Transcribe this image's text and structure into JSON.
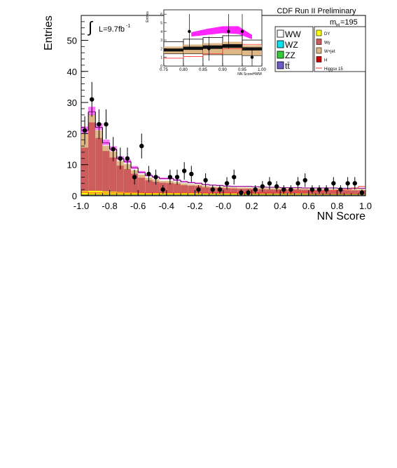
{
  "chart_data": {
    "type": "bar",
    "title": "CDF Run II Preliminary",
    "xlabel": "NN Score",
    "ylabel": "Entries",
    "luminosity": "L=9.7fb",
    "luminosity_exp": "-1",
    "mass_label": "m",
    "mass_sub": "H",
    "mass_value": "=195",
    "xlim": [
      -1.0,
      1.0
    ],
    "ylim": [
      0,
      58
    ],
    "x_ticks": [
      "-1.0",
      "-0.8",
      "-0.6",
      "-0.4",
      "-0.2",
      "-0.0",
      "0.2",
      "0.4",
      "0.6",
      "0.8",
      "1.0"
    ],
    "y_ticks": [
      "0",
      "10",
      "20",
      "30",
      "40",
      "50"
    ],
    "bin_width": 0.05,
    "bin_edges_start": -1.0,
    "stack_order": [
      "H",
      "DY",
      "WZ",
      "ZZ",
      "tt",
      "Wjet",
      "Wg",
      "WW"
    ],
    "colors": {
      "WW": "#ffffff",
      "WZ": "#00e5ee",
      "ZZ": "#33cc33",
      "tt": "#6a5acd",
      "DY": "#ffff00",
      "Wg": "#cd5c5c",
      "Wjet": "#deb887",
      "H": "#cc0000",
      "signal_line": "#ff3333",
      "uncertainty": "#ff00ff"
    },
    "background_total": [
      21,
      27,
      22,
      17,
      15,
      12,
      11,
      9,
      7.5,
      6.5,
      6,
      5.5,
      5.5,
      5,
      4.5,
      4.2,
      4,
      3.6,
      3.4,
      3.3,
      3.1,
      3,
      3,
      3,
      2.9,
      2.8,
      2.7,
      2.7,
      2.6,
      2.6,
      2.6,
      2.5,
      2.5,
      2.5,
      2.5,
      2.5,
      2.4,
      2.4,
      2.4,
      2.4
    ],
    "components": {
      "DY": [
        1.5,
        1.6,
        1.6,
        1.4,
        1.3,
        1.2,
        1.1,
        1.1,
        1.0,
        1.0,
        0.9,
        0.9,
        0.9,
        0.9,
        0.8,
        0.8,
        0.8,
        0.7,
        0.7,
        0.7,
        0.7,
        0.7,
        0.6,
        0.6,
        0.6,
        0.6,
        0.6,
        0.6,
        0.6,
        0.6,
        0.6,
        0.6,
        0.5,
        0.5,
        0.5,
        0.5,
        0.5,
        0.5,
        0.5,
        0.5
      ],
      "Wg": [
        14,
        22,
        17,
        13,
        11,
        8.5,
        7.5,
        6,
        4.8,
        4,
        3.6,
        3.3,
        3.2,
        2.9,
        2.6,
        2.4,
        2.3,
        2,
        1.9,
        1.8,
        1.7,
        1.6,
        1.6,
        1.6,
        1.5,
        1.5,
        1.4,
        1.4,
        1.4,
        1.4,
        1.4,
        1.3,
        1.3,
        1.3,
        1.3,
        1.3,
        1.2,
        1.2,
        1.2,
        1.2
      ],
      "Wjet": [
        4.5,
        2.5,
        2.4,
        1.7,
        1.9,
        1.5,
        1.6,
        1.1,
        1.0,
        0.8,
        0.8,
        0.6,
        0.7,
        0.6,
        0.6,
        0.5,
        0.5,
        0.5,
        0.4,
        0.4,
        0.4,
        0.4,
        0.4,
        0.4,
        0.4,
        0.4,
        0.4,
        0.4,
        0.4,
        0.4,
        0.4,
        0.4,
        0.4,
        0.4,
        0.4,
        0.4,
        0.4,
        0.4,
        0.4,
        0.4
      ],
      "signal_x15": [
        1.1,
        0.9,
        0.9,
        0.9,
        0.9,
        0.9,
        0.9,
        0.9,
        0.9,
        0.9,
        0.9,
        0.9,
        0.9,
        0.9,
        0.9,
        0.9,
        0.9,
        0.9,
        1.0,
        1.0,
        1.0,
        1.0,
        1.0,
        1.0,
        1.0,
        1.0,
        1.1,
        1.1,
        1.1,
        1.1,
        1.2,
        1.2,
        1.3,
        1.4,
        1.5,
        1.6,
        1.8,
        2.0,
        2.5,
        3.0
      ]
    },
    "data_points": [
      {
        "x": -0.975,
        "y": 21,
        "err": 4.6
      },
      {
        "x": -0.925,
        "y": 31,
        "err": 5.6
      },
      {
        "x": -0.875,
        "y": 23,
        "err": 4.8
      },
      {
        "x": -0.825,
        "y": 23,
        "err": 4.8
      },
      {
        "x": -0.775,
        "y": 15,
        "err": 3.9
      },
      {
        "x": -0.725,
        "y": 12,
        "err": 3.5
      },
      {
        "x": -0.675,
        "y": 12,
        "err": 3.5
      },
      {
        "x": -0.625,
        "y": 6,
        "err": 2.4
      },
      {
        "x": -0.575,
        "y": 16,
        "err": 4.0
      },
      {
        "x": -0.525,
        "y": 7,
        "err": 2.6
      },
      {
        "x": -0.475,
        "y": 6,
        "err": 2.4
      },
      {
        "x": -0.425,
        "y": 2,
        "err": 1.4
      },
      {
        "x": -0.375,
        "y": 6,
        "err": 2.4
      },
      {
        "x": -0.325,
        "y": 6,
        "err": 2.4
      },
      {
        "x": -0.275,
        "y": 8,
        "err": 2.8
      },
      {
        "x": -0.225,
        "y": 7,
        "err": 2.6
      },
      {
        "x": -0.175,
        "y": 2,
        "err": 1.4
      },
      {
        "x": -0.125,
        "y": 5,
        "err": 2.2
      },
      {
        "x": -0.075,
        "y": 2,
        "err": 1.4
      },
      {
        "x": -0.025,
        "y": 2,
        "err": 1.4
      },
      {
        "x": 0.025,
        "y": 4,
        "err": 2.0
      },
      {
        "x": 0.075,
        "y": 6,
        "err": 2.4
      },
      {
        "x": 0.125,
        "y": 1,
        "err": 1.0
      },
      {
        "x": 0.175,
        "y": 1,
        "err": 1.0
      },
      {
        "x": 0.225,
        "y": 2,
        "err": 1.4
      },
      {
        "x": 0.275,
        "y": 3,
        "err": 1.7
      },
      {
        "x": 0.325,
        "y": 4,
        "err": 2.0
      },
      {
        "x": 0.375,
        "y": 3,
        "err": 1.7
      },
      {
        "x": 0.425,
        "y": 2,
        "err": 1.4
      },
      {
        "x": 0.475,
        "y": 2,
        "err": 1.4
      },
      {
        "x": 0.525,
        "y": 4,
        "err": 2.0
      },
      {
        "x": 0.575,
        "y": 5,
        "err": 2.2
      },
      {
        "x": 0.625,
        "y": 2,
        "err": 1.4
      },
      {
        "x": 0.675,
        "y": 2,
        "err": 1.4
      },
      {
        "x": 0.725,
        "y": 2,
        "err": 1.4
      },
      {
        "x": 0.775,
        "y": 4,
        "err": 2.0
      },
      {
        "x": 0.825,
        "y": 2,
        "err": 1.4
      },
      {
        "x": 0.875,
        "y": 4,
        "err": 2.0
      },
      {
        "x": 0.925,
        "y": 4,
        "err": 2.0
      },
      {
        "x": 0.975,
        "y": 1,
        "err": 1.0
      }
    ],
    "legend": [
      {
        "key": "WW",
        "label": "WW",
        "size": "large"
      },
      {
        "key": "WZ",
        "label": "WZ",
        "size": "large"
      },
      {
        "key": "ZZ",
        "label": "ZZ",
        "size": "large"
      },
      {
        "key": "tt",
        "label": "tt̄",
        "size": "large"
      },
      {
        "key": "DY",
        "label": "DY",
        "size": "small"
      },
      {
        "key": "Wg",
        "label": "Wγ",
        "size": "small"
      },
      {
        "key": "Wjet",
        "label": "W+jet",
        "size": "small"
      },
      {
        "key": "H",
        "label": "H",
        "size": "small"
      },
      {
        "key": "signal_line",
        "label": "Higgsx 15",
        "size": "small",
        "line": true
      }
    ],
    "inset": {
      "xlabel": "NN ScoreHWW",
      "ylabel": "Entries",
      "xlim": [
        0.75,
        1.0
      ],
      "ylim": [
        0,
        6.5
      ],
      "x_ticks": [
        "0.75",
        "0.80",
        "0.85",
        "0.90",
        "0.95",
        "1.00"
      ],
      "y_ticks": [
        "0",
        "1",
        "2",
        "3",
        "4",
        "5",
        "6"
      ],
      "bin_edges": [
        0.75,
        0.8,
        0.85,
        0.9,
        0.95,
        1.0
      ],
      "bg_total": [
        2.8,
        3.1,
        3.3,
        3.5,
        3.0
      ],
      "Wg": [
        1.4,
        1.4,
        1.3,
        1.3,
        1.2
      ],
      "signal_line": [
        0.9,
        1.1,
        1.4,
        2.0,
        2.5
      ],
      "uncertainty_band": [
        [
          0.82,
          3.4,
          3.9
        ],
        [
          0.86,
          3.6,
          4.3
        ],
        [
          0.9,
          3.8,
          4.6
        ],
        [
          0.94,
          3.7,
          4.6
        ],
        [
          0.975,
          3.1,
          3.6
        ]
      ],
      "data_points": [
        {
          "x": 0.815,
          "y": 4,
          "err": 2.0
        },
        {
          "x": 0.865,
          "y": 2,
          "err": 1.4
        },
        {
          "x": 0.915,
          "y": 4,
          "err": 2.0
        },
        {
          "x": 0.95,
          "y": 4,
          "err": 2.0
        },
        {
          "x": 0.975,
          "y": 1,
          "err": 1.0
        }
      ]
    }
  }
}
